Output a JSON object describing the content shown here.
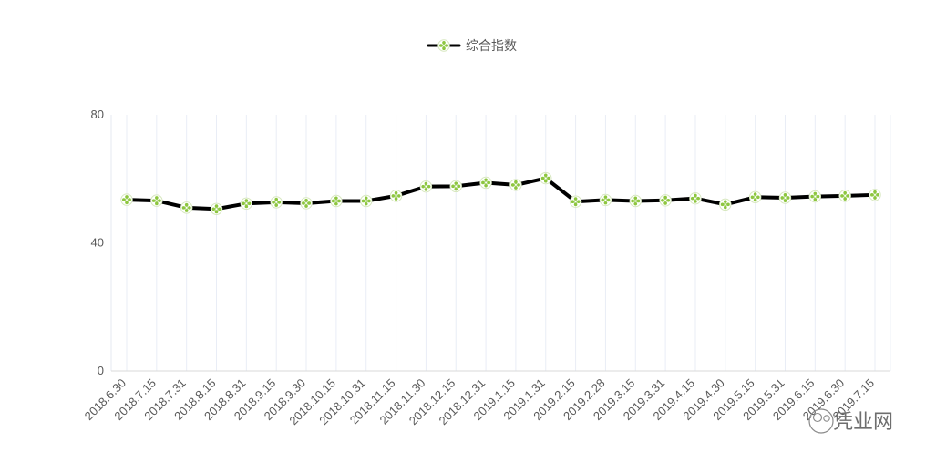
{
  "chart_data": {
    "type": "line",
    "title": "",
    "xlabel": "",
    "ylabel": "",
    "ylim": [
      0,
      80
    ],
    "y_ticks": [
      0,
      40,
      80
    ],
    "grid": {
      "horizontal": false,
      "vertical": true
    },
    "legend": {
      "position": "top-center"
    },
    "categories": [
      "2018.6.30",
      "2018.7.15",
      "2018.7.31",
      "2018.8.15",
      "2018.8.31",
      "2018.9.15",
      "2018.9.30",
      "2018.10.15",
      "2018.10.31",
      "2018.11.15",
      "2018.11.30",
      "2018.12.15",
      "2018.12.31",
      "2019.1.15",
      "2019.1.31",
      "2019.2.15",
      "2019.2.28",
      "2019.3.15",
      "2019.3.31",
      "2019.4.15",
      "2019.4.30",
      "2019.5.15",
      "2019.5.31",
      "2019.6.15",
      "2019.6.30",
      "2019.7.15"
    ],
    "series": [
      {
        "name": "综合指数",
        "values": [
          53.5,
          53.2,
          51.0,
          50.6,
          52.3,
          52.7,
          52.4,
          53.1,
          53.1,
          54.7,
          57.6,
          57.7,
          58.8,
          58.1,
          60.2,
          52.9,
          53.4,
          53.1,
          53.3,
          53.9,
          52.0,
          54.3,
          54.1,
          54.5,
          54.7,
          55.0
        ],
        "line_color": "#000000",
        "marker_color": "#8dc63f"
      }
    ]
  },
  "watermark": {
    "text": "凭业网"
  }
}
